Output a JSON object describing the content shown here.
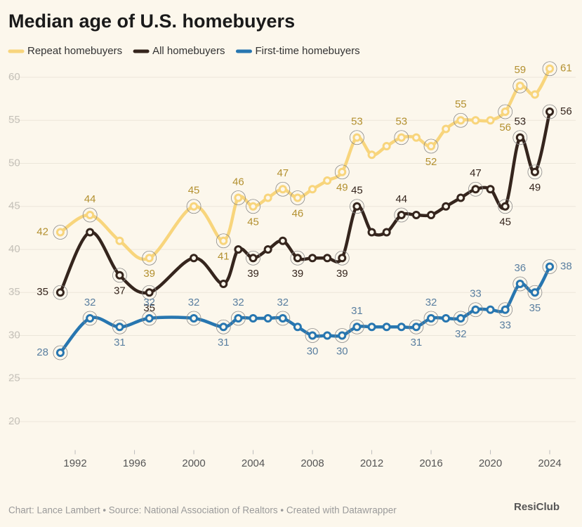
{
  "chart_data": {
    "type": "line",
    "title": "Median age of U.S. homebuyers",
    "source": "Chart: Lance Lambert • Source: National Association of Realtors • Created with Datawrapper",
    "watermark": "ResiClub",
    "x": [
      1991,
      1993,
      1995,
      1997,
      2000,
      2002,
      2003,
      2004,
      2005,
      2006,
      2007,
      2008,
      2009,
      2010,
      2011,
      2012,
      2013,
      2014,
      2015,
      2016,
      2017,
      2018,
      2019,
      2020,
      2021,
      2022,
      2023,
      2024
    ],
    "xlim": [
      1987.5,
      2025.75
    ],
    "xticks": [
      1992,
      1996,
      2000,
      2004,
      2008,
      2012,
      2016,
      2020,
      2024
    ],
    "ylim": [
      18,
      62
    ],
    "yticks": [
      20,
      25,
      30,
      35,
      40,
      45,
      50,
      55,
      60
    ],
    "grid": true,
    "legend": "top",
    "series": [
      {
        "name": "Repeat homebuyers",
        "color": "#f8d57c",
        "values": [
          42,
          44,
          41,
          39,
          45,
          41,
          46,
          45,
          46,
          47,
          46,
          47,
          48,
          49,
          53,
          51,
          52,
          53,
          53,
          52,
          54,
          55,
          55,
          55,
          56,
          59,
          58,
          61
        ],
        "value_labels": [
          "42",
          "44",
          null,
          "39",
          "45",
          "41",
          "46",
          "45",
          null,
          "47",
          "46",
          null,
          null,
          "49",
          "53",
          null,
          null,
          "53",
          null,
          "52",
          null,
          "55",
          null,
          null,
          "56",
          "59",
          null,
          "61"
        ]
      },
      {
        "name": "All homebuyers",
        "color": "#35251d",
        "values": [
          35,
          42,
          37,
          35,
          39,
          36,
          40,
          39,
          40,
          41,
          39,
          39,
          39,
          39,
          45,
          42,
          42,
          44,
          44,
          44,
          45,
          46,
          47,
          47,
          45,
          53,
          49,
          56
        ],
        "value_labels": [
          "35",
          null,
          "37",
          "35",
          null,
          null,
          null,
          "39",
          null,
          null,
          "39",
          null,
          null,
          "39",
          "45",
          null,
          null,
          "44",
          null,
          null,
          null,
          null,
          "47",
          null,
          "45",
          "53",
          "49",
          "56"
        ]
      },
      {
        "name": "First-time homebuyers",
        "color": "#2776b0",
        "values": [
          28,
          32,
          31,
          32,
          32,
          31,
          32,
          32,
          32,
          32,
          31,
          30,
          30,
          30,
          31,
          31,
          31,
          31,
          31,
          32,
          32,
          32,
          33,
          33,
          33,
          36,
          35,
          38
        ],
        "value_labels": [
          "28",
          "32",
          "31",
          "32",
          "32",
          "31",
          "32",
          null,
          null,
          "32",
          null,
          "30",
          null,
          "30",
          "31",
          null,
          null,
          null,
          "31",
          "32",
          null,
          "32",
          "33",
          null,
          "33",
          "36",
          "35",
          "38"
        ]
      }
    ]
  }
}
